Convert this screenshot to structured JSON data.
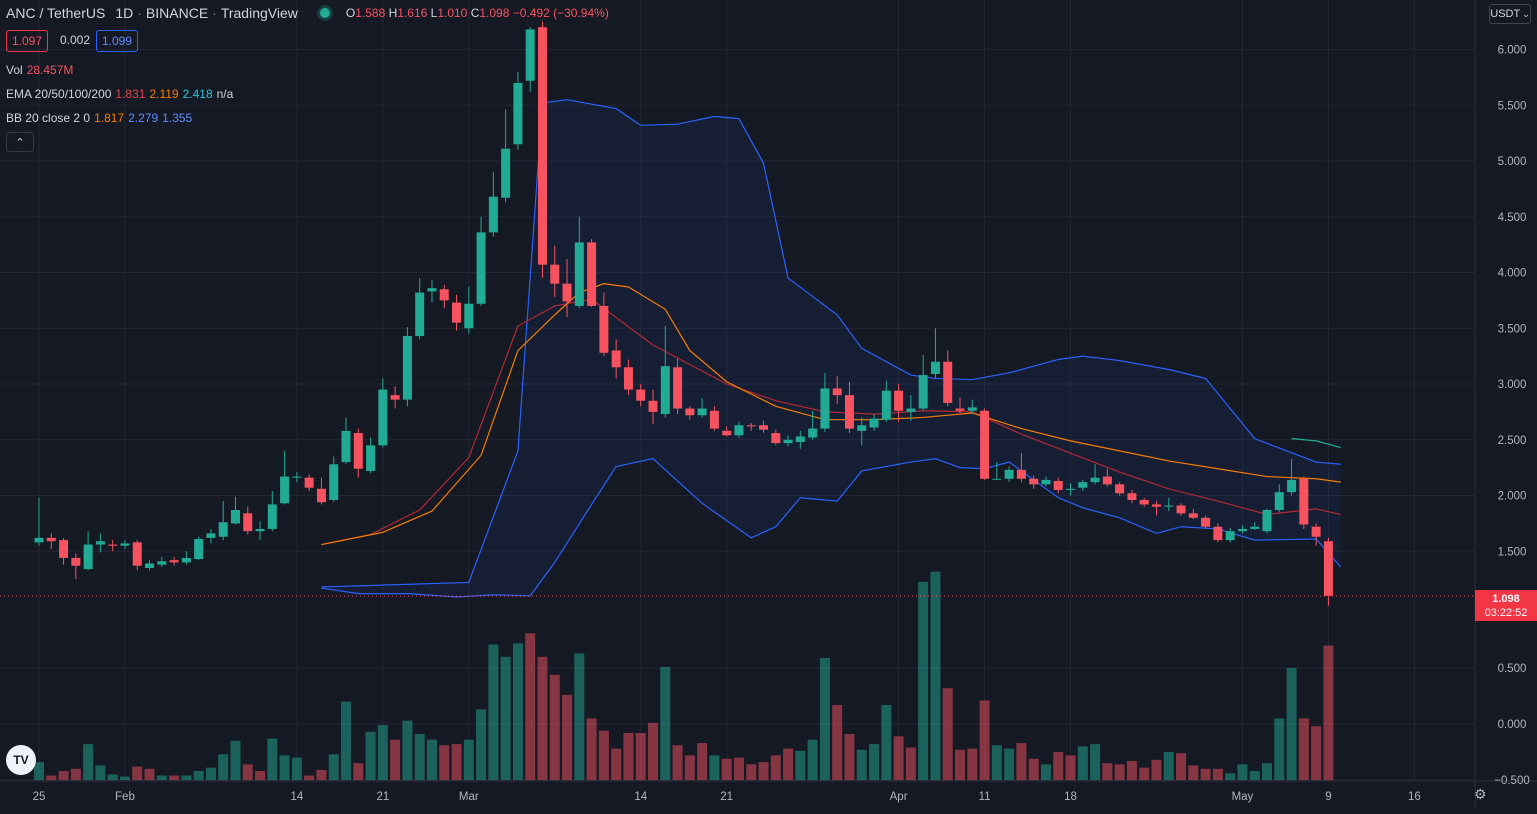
{
  "header": {
    "symbol": "ANC / TetherUS",
    "interval": "1D",
    "exchange": "BINANCE",
    "provider": "TradingView",
    "ohlc": {
      "o_label": "O",
      "o": "1.588",
      "h_label": "H",
      "h": "1.616",
      "l_label": "L",
      "l": "1.010",
      "c_label": "C",
      "c": "1.098",
      "change": "−0.492 (−30.94%)"
    }
  },
  "prices": {
    "bid": "1.097",
    "spread": "0.002",
    "ask": "1.099"
  },
  "indicators": {
    "vol": {
      "label": "Vol",
      "value": "28.457M"
    },
    "ema": {
      "label": "EMA 20/50/100/200",
      "v1": "1.831",
      "v2": "2.119",
      "v3": "2.418",
      "v4": "n/a"
    },
    "bb": {
      "label": "BB 20 close 2 0",
      "v1": "1.817",
      "v2": "2.279",
      "v3": "1.355"
    }
  },
  "currency": "USDT",
  "last_price": {
    "price": "1.098",
    "countdown": "03:22:52"
  },
  "colors": {
    "up": "#22ab94",
    "down": "#f7525f",
    "bb": "#2962ff",
    "ema20": "#b22833",
    "ema50": "#f57c00",
    "ema100": "#22ab94",
    "bg": "#151924"
  },
  "chart_data": {
    "type": "candlestick",
    "y_axis_ticks": [
      "6.000",
      "5.500",
      "5.000",
      "4.500",
      "4.000",
      "3.500",
      "3.000",
      "2.500",
      "2.000",
      "1.500",
      "0.500",
      "0.000",
      "−0.500"
    ],
    "x_axis_ticks": [
      "25",
      "Feb",
      "14",
      "21",
      "Mar",
      "14",
      "21",
      "Apr",
      "11",
      "18",
      "May",
      "9",
      "16"
    ],
    "candles": [
      [
        1.58,
        1.62,
        1.55,
        1.98
      ],
      [
        1.62,
        1.59,
        1.52,
        1.66
      ],
      [
        1.6,
        1.44,
        1.38,
        1.62
      ],
      [
        1.44,
        1.37,
        1.25,
        1.48
      ],
      [
        1.34,
        1.56,
        1.33,
        1.68
      ],
      [
        1.56,
        1.59,
        1.49,
        1.66
      ],
      [
        1.56,
        1.55,
        1.5,
        1.6
      ],
      [
        1.55,
        1.57,
        1.52,
        1.6
      ],
      [
        1.58,
        1.37,
        1.33,
        1.6
      ],
      [
        1.35,
        1.39,
        1.33,
        1.42
      ],
      [
        1.38,
        1.41,
        1.36,
        1.45
      ],
      [
        1.42,
        1.4,
        1.37,
        1.45
      ],
      [
        1.4,
        1.44,
        1.38,
        1.5
      ],
      [
        1.43,
        1.61,
        1.42,
        1.63
      ],
      [
        1.62,
        1.66,
        1.57,
        1.7
      ],
      [
        1.63,
        1.76,
        1.6,
        1.95
      ],
      [
        1.75,
        1.87,
        1.74,
        1.99
      ],
      [
        1.84,
        1.68,
        1.65,
        1.9
      ],
      [
        1.68,
        1.7,
        1.6,
        1.77
      ],
      [
        1.7,
        1.92,
        1.68,
        2.04
      ],
      [
        1.93,
        2.17,
        1.92,
        2.4
      ],
      [
        2.16,
        2.17,
        2.12,
        2.21
      ],
      [
        2.16,
        2.07,
        2.04,
        2.19
      ],
      [
        2.06,
        1.94,
        1.92,
        2.16
      ],
      [
        1.96,
        2.28,
        1.94,
        2.35
      ],
      [
        2.3,
        2.58,
        2.28,
        2.7
      ],
      [
        2.56,
        2.24,
        2.16,
        2.6
      ],
      [
        2.22,
        2.45,
        2.2,
        2.52
      ],
      [
        2.45,
        2.95,
        2.43,
        3.05
      ],
      [
        2.9,
        2.86,
        2.78,
        2.98
      ],
      [
        2.86,
        3.43,
        2.8,
        3.51
      ],
      [
        3.43,
        3.82,
        3.4,
        3.95
      ],
      [
        3.83,
        3.86,
        3.73,
        3.93
      ],
      [
        3.85,
        3.75,
        3.68,
        3.89
      ],
      [
        3.73,
        3.55,
        3.48,
        3.8
      ],
      [
        3.5,
        3.72,
        3.45,
        3.87
      ],
      [
        3.72,
        4.36,
        3.7,
        4.5
      ],
      [
        4.36,
        4.68,
        4.32,
        4.9
      ],
      [
        4.67,
        5.11,
        4.63,
        5.46
      ],
      [
        5.15,
        5.7,
        5.1,
        5.8
      ],
      [
        5.72,
        6.18,
        5.62,
        6.2
      ],
      [
        6.2,
        4.07,
        3.95,
        6.25
      ],
      [
        4.07,
        3.9,
        3.78,
        4.24
      ],
      [
        3.9,
        3.74,
        3.6,
        4.12
      ],
      [
        3.7,
        4.27,
        3.68,
        4.5
      ],
      [
        4.27,
        3.7,
        3.69,
        4.3
      ],
      [
        3.7,
        3.28,
        3.25,
        3.82
      ],
      [
        3.3,
        3.15,
        3.05,
        3.4
      ],
      [
        3.15,
        2.95,
        2.9,
        3.22
      ],
      [
        2.95,
        2.85,
        2.8,
        3.0
      ],
      [
        2.85,
        2.75,
        2.64,
        2.95
      ],
      [
        2.73,
        3.16,
        2.7,
        3.52
      ],
      [
        3.15,
        2.78,
        2.73,
        3.23
      ],
      [
        2.78,
        2.72,
        2.68,
        2.8
      ],
      [
        2.72,
        2.78,
        2.7,
        2.87
      ],
      [
        2.76,
        2.6,
        2.58,
        2.8
      ],
      [
        2.58,
        2.54,
        2.53,
        2.62
      ],
      [
        2.54,
        2.63,
        2.52,
        2.66
      ],
      [
        2.63,
        2.62,
        2.58,
        2.65
      ],
      [
        2.63,
        2.59,
        2.56,
        2.67
      ],
      [
        2.56,
        2.47,
        2.45,
        2.59
      ],
      [
        2.47,
        2.5,
        2.44,
        2.54
      ],
      [
        2.48,
        2.53,
        2.42,
        2.58
      ],
      [
        2.52,
        2.6,
        2.5,
        2.76
      ],
      [
        2.6,
        2.96,
        2.57,
        3.1
      ],
      [
        2.96,
        2.9,
        2.82,
        3.07
      ],
      [
        2.9,
        2.6,
        2.56,
        3.02
      ],
      [
        2.58,
        2.63,
        2.45,
        2.7
      ],
      [
        2.61,
        2.69,
        2.58,
        2.73
      ],
      [
        2.68,
        2.94,
        2.66,
        3.03
      ],
      [
        2.94,
        2.76,
        2.66,
        3.0
      ],
      [
        2.75,
        2.78,
        2.67,
        2.9
      ],
      [
        2.78,
        3.08,
        2.76,
        3.26
      ],
      [
        3.09,
        3.2,
        3.05,
        3.5
      ],
      [
        3.2,
        2.83,
        2.8,
        3.3
      ],
      [
        2.78,
        2.76,
        2.74,
        2.88
      ],
      [
        2.76,
        2.79,
        2.73,
        2.86
      ],
      [
        2.76,
        2.15,
        2.14,
        2.78
      ],
      [
        2.15,
        2.15,
        2.14,
        2.3
      ],
      [
        2.15,
        2.23,
        2.12,
        2.26
      ],
      [
        2.23,
        2.15,
        2.12,
        2.38
      ],
      [
        2.15,
        2.1,
        2.06,
        2.18
      ],
      [
        2.1,
        2.14,
        2.08,
        2.17
      ],
      [
        2.13,
        2.05,
        2.02,
        2.16
      ],
      [
        2.05,
        2.06,
        2.0,
        2.11
      ],
      [
        2.07,
        2.12,
        2.04,
        2.14
      ],
      [
        2.12,
        2.16,
        2.1,
        2.28
      ],
      [
        2.17,
        2.1,
        2.08,
        2.24
      ],
      [
        2.1,
        2.02,
        2.0,
        2.12
      ],
      [
        2.02,
        1.96,
        1.93,
        2.05
      ],
      [
        1.96,
        1.92,
        1.9,
        1.98
      ],
      [
        1.92,
        1.9,
        1.82,
        1.95
      ],
      [
        1.9,
        1.91,
        1.86,
        1.98
      ],
      [
        1.91,
        1.84,
        1.82,
        1.93
      ],
      [
        1.84,
        1.8,
        1.79,
        1.88
      ],
      [
        1.8,
        1.72,
        1.7,
        1.82
      ],
      [
        1.72,
        1.6,
        1.58,
        1.75
      ],
      [
        1.6,
        1.68,
        1.58,
        1.71
      ],
      [
        1.68,
        1.7,
        1.66,
        1.73
      ],
      [
        1.7,
        1.72,
        1.69,
        1.76
      ],
      [
        1.68,
        1.87,
        1.66,
        1.88
      ],
      [
        1.87,
        2.03,
        1.85,
        2.1
      ],
      [
        2.03,
        2.14,
        2.0,
        2.33
      ],
      [
        2.15,
        1.74,
        1.7,
        2.17
      ],
      [
        1.72,
        1.63,
        1.55,
        1.75
      ],
      [
        1.59,
        1.1,
        1.01,
        1.62
      ]
    ],
    "volume": [
      [
        0.16,
        "up"
      ],
      [
        0.04,
        "down"
      ],
      [
        0.08,
        "down"
      ],
      [
        0.1,
        "down"
      ],
      [
        0.32,
        "up"
      ],
      [
        0.13,
        "up"
      ],
      [
        0.05,
        "up"
      ],
      [
        0.03,
        "up"
      ],
      [
        0.12,
        "down"
      ],
      [
        0.1,
        "down"
      ],
      [
        0.04,
        "up"
      ],
      [
        0.04,
        "down"
      ],
      [
        0.04,
        "up"
      ],
      [
        0.08,
        "up"
      ],
      [
        0.11,
        "up"
      ],
      [
        0.23,
        "up"
      ],
      [
        0.35,
        "up"
      ],
      [
        0.14,
        "down"
      ],
      [
        0.08,
        "down"
      ],
      [
        0.37,
        "up"
      ],
      [
        0.22,
        "up"
      ],
      [
        0.2,
        "up"
      ],
      [
        0.04,
        "down"
      ],
      [
        0.09,
        "down"
      ],
      [
        0.23,
        "up"
      ],
      [
        0.7,
        "up"
      ],
      [
        0.15,
        "down"
      ],
      [
        0.43,
        "up"
      ],
      [
        0.49,
        "up"
      ],
      [
        0.36,
        "down"
      ],
      [
        0.53,
        "up"
      ],
      [
        0.41,
        "up"
      ],
      [
        0.36,
        "up"
      ],
      [
        0.31,
        "down"
      ],
      [
        0.32,
        "down"
      ],
      [
        0.36,
        "up"
      ],
      [
        0.63,
        "up"
      ],
      [
        1.21,
        "up"
      ],
      [
        1.1,
        "up"
      ],
      [
        1.22,
        "up"
      ],
      [
        1.31,
        "down"
      ],
      [
        1.1,
        "down"
      ],
      [
        0.94,
        "down"
      ],
      [
        0.76,
        "down"
      ],
      [
        1.13,
        "up"
      ],
      [
        0.55,
        "down"
      ],
      [
        0.44,
        "down"
      ],
      [
        0.28,
        "down"
      ],
      [
        0.42,
        "down"
      ],
      [
        0.42,
        "down"
      ],
      [
        0.51,
        "down"
      ],
      [
        1.01,
        "up"
      ],
      [
        0.31,
        "down"
      ],
      [
        0.22,
        "down"
      ],
      [
        0.33,
        "down"
      ],
      [
        0.22,
        "up"
      ],
      [
        0.19,
        "down"
      ],
      [
        0.2,
        "down"
      ],
      [
        0.14,
        "down"
      ],
      [
        0.16,
        "down"
      ],
      [
        0.22,
        "down"
      ],
      [
        0.28,
        "down"
      ],
      [
        0.26,
        "up"
      ],
      [
        0.36,
        "up"
      ],
      [
        1.09,
        "up"
      ],
      [
        0.67,
        "down"
      ],
      [
        0.41,
        "down"
      ],
      [
        0.27,
        "up"
      ],
      [
        0.32,
        "up"
      ],
      [
        0.67,
        "up"
      ],
      [
        0.39,
        "down"
      ],
      [
        0.29,
        "down"
      ],
      [
        1.77,
        "up"
      ],
      [
        1.86,
        "up"
      ],
      [
        0.82,
        "down"
      ],
      [
        0.27,
        "down"
      ],
      [
        0.28,
        "down"
      ],
      [
        0.71,
        "down"
      ],
      [
        0.31,
        "up"
      ],
      [
        0.28,
        "up"
      ],
      [
        0.33,
        "down"
      ],
      [
        0.19,
        "down"
      ],
      [
        0.14,
        "up"
      ],
      [
        0.25,
        "down"
      ],
      [
        0.22,
        "down"
      ],
      [
        0.3,
        "up"
      ],
      [
        0.32,
        "up"
      ],
      [
        0.15,
        "down"
      ],
      [
        0.14,
        "down"
      ],
      [
        0.17,
        "down"
      ],
      [
        0.11,
        "down"
      ],
      [
        0.18,
        "down"
      ],
      [
        0.25,
        "up"
      ],
      [
        0.24,
        "down"
      ],
      [
        0.13,
        "down"
      ],
      [
        0.1,
        "down"
      ],
      [
        0.1,
        "down"
      ],
      [
        0.06,
        "up"
      ],
      [
        0.14,
        "up"
      ],
      [
        0.08,
        "up"
      ],
      [
        0.15,
        "up"
      ],
      [
        0.55,
        "up"
      ],
      [
        1.0,
        "up"
      ],
      [
        0.55,
        "down"
      ],
      [
        0.48,
        "down"
      ],
      [
        1.2,
        "down"
      ]
    ],
    "bb_upper": [
      [
        23,
        1.18
      ],
      [
        35,
        1.22
      ],
      [
        39,
        2.4
      ],
      [
        41,
        5.52
      ],
      [
        43,
        5.55
      ],
      [
        47,
        5.47
      ],
      [
        49,
        5.32
      ],
      [
        52,
        5.33
      ],
      [
        55,
        5.4
      ],
      [
        57,
        5.38
      ],
      [
        59,
        4.98
      ],
      [
        61,
        3.95
      ],
      [
        65,
        3.62
      ],
      [
        67,
        3.32
      ],
      [
        71,
        3.08
      ],
      [
        73,
        3.05
      ],
      [
        76,
        3.04
      ],
      [
        79,
        3.1
      ],
      [
        83,
        3.22
      ],
      [
        85,
        3.25
      ],
      [
        88,
        3.21
      ],
      [
        92,
        3.13
      ],
      [
        95,
        3.05
      ],
      [
        99,
        2.51
      ],
      [
        104,
        2.3
      ],
      [
        106,
        2.28
      ]
    ],
    "bb_lower": [
      [
        23,
        1.17
      ],
      [
        26,
        1.12
      ],
      [
        30,
        1.12
      ],
      [
        34,
        1.09
      ],
      [
        37,
        1.11
      ],
      [
        40,
        1.1
      ],
      [
        42,
        1.4
      ],
      [
        45,
        1.92
      ],
      [
        47,
        2.26
      ],
      [
        50,
        2.33
      ],
      [
        54,
        1.93
      ],
      [
        58,
        1.62
      ],
      [
        60,
        1.72
      ],
      [
        62,
        1.98
      ],
      [
        65,
        1.95
      ],
      [
        67,
        2.22
      ],
      [
        71,
        2.3
      ],
      [
        73,
        2.33
      ],
      [
        75,
        2.25
      ],
      [
        77,
        2.24
      ],
      [
        79,
        2.3
      ],
      [
        83,
        1.98
      ],
      [
        85,
        1.89
      ],
      [
        88,
        1.8
      ],
      [
        91,
        1.66
      ],
      [
        93,
        1.72
      ],
      [
        96,
        1.7
      ],
      [
        99,
        1.6
      ],
      [
        104,
        1.61
      ],
      [
        106,
        1.36
      ]
    ],
    "ema20": [
      [
        23,
        1.56
      ],
      [
        27,
        1.65
      ],
      [
        31,
        1.87
      ],
      [
        35,
        2.34
      ],
      [
        39,
        3.52
      ],
      [
        42,
        3.7
      ],
      [
        45,
        3.76
      ],
      [
        50,
        3.35
      ],
      [
        56,
        3.0
      ],
      [
        60,
        2.85
      ],
      [
        64,
        2.75
      ],
      [
        68,
        2.73
      ],
      [
        72,
        2.76
      ],
      [
        76,
        2.75
      ],
      [
        80,
        2.55
      ],
      [
        84,
        2.38
      ],
      [
        88,
        2.21
      ],
      [
        92,
        2.06
      ],
      [
        96,
        1.95
      ],
      [
        100,
        1.83
      ],
      [
        104,
        1.88
      ],
      [
        106,
        1.83
      ]
    ],
    "ema50": [
      [
        23,
        1.56
      ],
      [
        28,
        1.67
      ],
      [
        32,
        1.86
      ],
      [
        36,
        2.36
      ],
      [
        39,
        3.3
      ],
      [
        42,
        3.62
      ],
      [
        44,
        3.82
      ],
      [
        46,
        3.9
      ],
      [
        48,
        3.87
      ],
      [
        51,
        3.67
      ],
      [
        53,
        3.3
      ],
      [
        56,
        3.02
      ],
      [
        60,
        2.8
      ],
      [
        64,
        2.68
      ],
      [
        68,
        2.68
      ],
      [
        72,
        2.7
      ],
      [
        76,
        2.74
      ],
      [
        80,
        2.6
      ],
      [
        84,
        2.49
      ],
      [
        88,
        2.4
      ],
      [
        92,
        2.31
      ],
      [
        96,
        2.24
      ],
      [
        100,
        2.17
      ],
      [
        104,
        2.15
      ],
      [
        106,
        2.12
      ]
    ],
    "ema100": [
      [
        102,
        2.51
      ],
      [
        104,
        2.49
      ],
      [
        106,
        2.43
      ]
    ]
  }
}
